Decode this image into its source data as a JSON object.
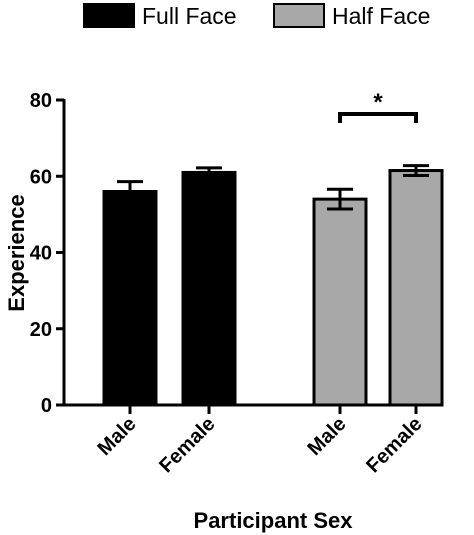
{
  "chart_data": {
    "type": "bar",
    "title": "",
    "xlabel": "Participant Sex",
    "ylabel": "Experience",
    "ylim": [
      0,
      80
    ],
    "yticks": [
      0,
      20,
      40,
      60,
      80
    ],
    "legend": {
      "placement": "top"
    },
    "groups": [
      {
        "name": "Full Face",
        "color": "#000000",
        "bars": [
          {
            "category": "Male",
            "value": 56,
            "error": 2.6
          },
          {
            "category": "Female",
            "value": 61,
            "error": 1.2
          }
        ]
      },
      {
        "name": "Half Face",
        "color": "#a8a8a8",
        "bars": [
          {
            "category": "Male",
            "value": 54,
            "error": 2.6
          },
          {
            "category": "Female",
            "value": 61.5,
            "error": 1.3
          }
        ]
      }
    ],
    "annotations": [
      {
        "text": "*",
        "group": "Half Face",
        "between": [
          "Male",
          "Female"
        ]
      }
    ]
  }
}
